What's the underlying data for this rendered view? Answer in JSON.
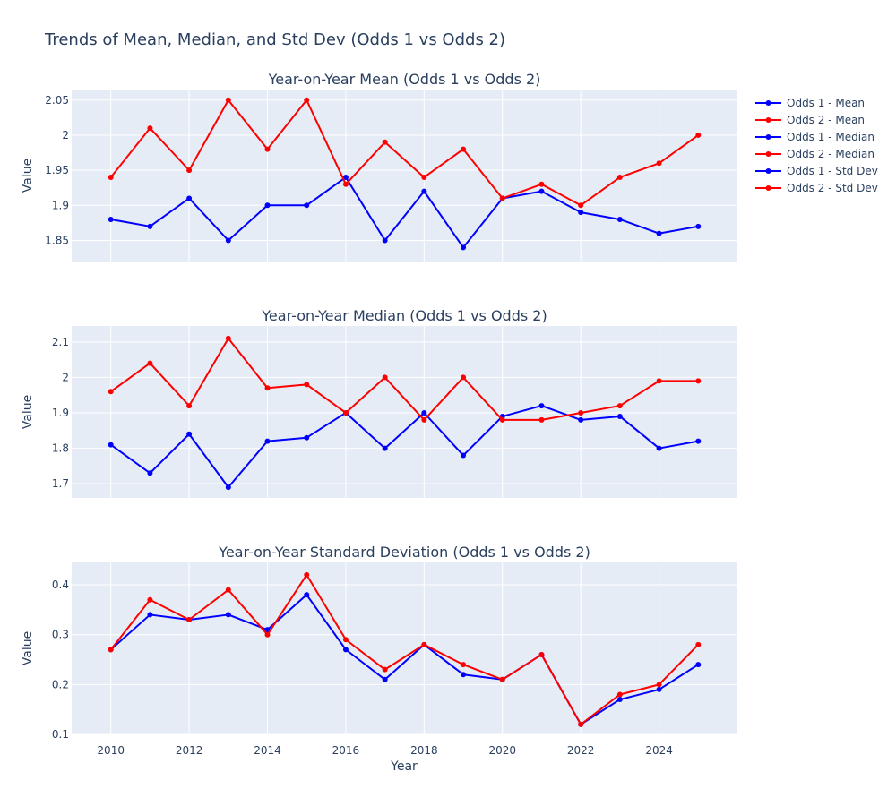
{
  "chart_data": {
    "type": "line",
    "title": "Trends of Mean, Median, and Std Dev (Odds 1 vs Odds 2)",
    "xlabel": "Year",
    "x": [
      2010,
      2011,
      2012,
      2013,
      2014,
      2015,
      2016,
      2017,
      2018,
      2019,
      2020,
      2021,
      2022,
      2023,
      2024,
      2025
    ],
    "x_ticks": [
      "2010",
      "2012",
      "2014",
      "2016",
      "2018",
      "2020",
      "2022",
      "2024"
    ],
    "xlim": [
      2009,
      2026
    ],
    "grid": true,
    "legend_position": "top-right",
    "colors": {
      "odds1": "#0000ff",
      "odds2": "#ff0000",
      "plot_bg": "#e5ecf6"
    },
    "panels": [
      {
        "id": "mean",
        "title": "Year-on-Year Mean (Odds 1 vs Odds 2)",
        "ylabel": "Value",
        "ylim": [
          1.82,
          2.065
        ],
        "y_ticks": [
          "1.85",
          "1.9",
          "1.95",
          "2",
          "2.05"
        ],
        "series": [
          {
            "name": "Odds 1 - Mean",
            "color": "#0000ff",
            "values": [
              1.88,
              1.87,
              1.91,
              1.85,
              1.9,
              1.9,
              1.94,
              1.85,
              1.92,
              1.84,
              1.91,
              1.92,
              1.89,
              1.88,
              1.86,
              1.87
            ]
          },
          {
            "name": "Odds 2 - Mean",
            "color": "#ff0000",
            "values": [
              1.94,
              2.01,
              1.95,
              2.05,
              1.98,
              2.05,
              1.93,
              1.99,
              1.94,
              1.98,
              1.91,
              1.93,
              1.9,
              1.94,
              1.96,
              2.0
            ]
          }
        ]
      },
      {
        "id": "median",
        "title": "Year-on-Year Median (Odds 1 vs Odds 2)",
        "ylabel": "Value",
        "ylim": [
          1.66,
          2.145
        ],
        "y_ticks": [
          "1.7",
          "1.8",
          "1.9",
          "2",
          "2.1"
        ],
        "series": [
          {
            "name": "Odds 1 - Median",
            "color": "#0000ff",
            "values": [
              1.81,
              1.73,
              1.84,
              1.69,
              1.82,
              1.83,
              1.9,
              1.8,
              1.9,
              1.78,
              1.89,
              1.92,
              1.88,
              1.89,
              1.8,
              1.82
            ]
          },
          {
            "name": "Odds 2 - Median",
            "color": "#ff0000",
            "values": [
              1.96,
              2.04,
              1.92,
              2.11,
              1.97,
              1.98,
              1.9,
              2.0,
              1.88,
              2.0,
              1.88,
              1.88,
              1.9,
              1.92,
              1.99,
              1.99
            ]
          }
        ]
      },
      {
        "id": "std",
        "title": "Year-on-Year Standard Deviation (Odds 1 vs Odds 2)",
        "ylabel": "Value",
        "ylim": [
          0.1,
          0.445
        ],
        "y_ticks": [
          "0.1",
          "0.2",
          "0.3",
          "0.4"
        ],
        "series": [
          {
            "name": "Odds 1 - Std Dev",
            "color": "#0000ff",
            "values": [
              0.27,
              0.34,
              0.33,
              0.34,
              0.31,
              0.38,
              0.27,
              0.21,
              0.28,
              0.22,
              0.21,
              0.26,
              0.12,
              0.17,
              0.19,
              0.24
            ]
          },
          {
            "name": "Odds 2 - Std Dev",
            "color": "#ff0000",
            "values": [
              0.27,
              0.37,
              0.33,
              0.39,
              0.3,
              0.42,
              0.29,
              0.23,
              0.28,
              0.24,
              0.21,
              0.26,
              0.12,
              0.18,
              0.2,
              0.28
            ]
          }
        ]
      }
    ],
    "legend": [
      {
        "name": "Odds 1 - Mean",
        "color": "#0000ff"
      },
      {
        "name": "Odds 2 - Mean",
        "color": "#ff0000"
      },
      {
        "name": "Odds 1 - Median",
        "color": "#0000ff"
      },
      {
        "name": "Odds 2 - Median",
        "color": "#ff0000"
      },
      {
        "name": "Odds 1 - Std Dev",
        "color": "#0000ff"
      },
      {
        "name": "Odds 2 - Std Dev",
        "color": "#ff0000"
      }
    ]
  }
}
